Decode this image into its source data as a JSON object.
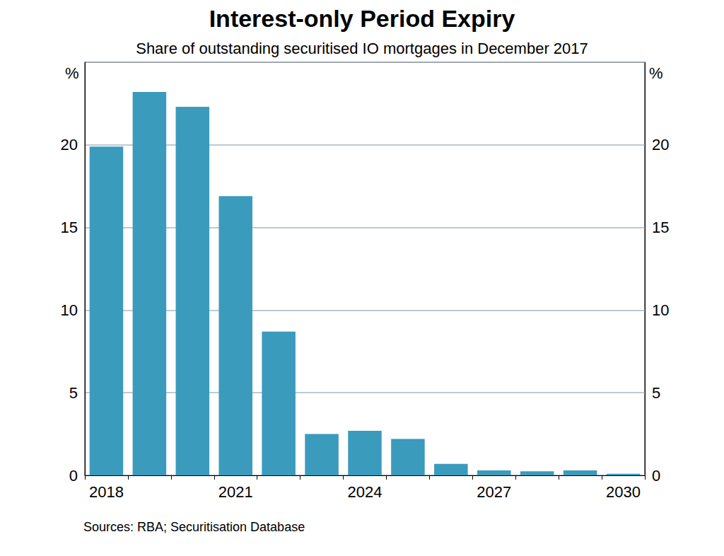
{
  "chart_data": {
    "type": "bar",
    "title": "Interest-only Period Expiry",
    "subtitle": "Share of outstanding securitised IO mortgages in December 2017",
    "source": "Sources: RBA; Securitisation Database",
    "ylabel": "%",
    "categories": [
      "2018",
      null,
      null,
      "2021",
      null,
      null,
      "2024",
      null,
      null,
      "2027",
      null,
      null,
      "2030"
    ],
    "values": [
      19.9,
      23.2,
      22.3,
      16.9,
      8.7,
      2.5,
      2.7,
      2.2,
      0.7,
      0.3,
      0.25,
      0.3,
      0.1
    ],
    "color": "#3a9bbd",
    "ylim": [
      0,
      25
    ],
    "yticks": [
      0,
      5,
      10,
      15,
      20
    ],
    "grid": true
  }
}
